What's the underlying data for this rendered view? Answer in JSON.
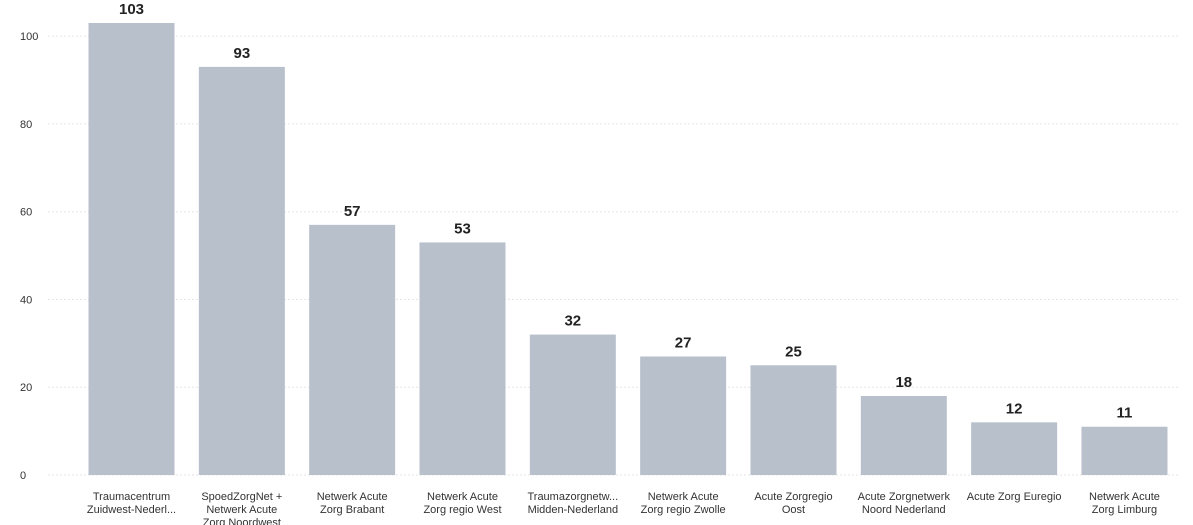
{
  "chart_data": {
    "type": "bar",
    "categories": [
      [
        "Traumacentrum",
        "Zuidwest-Nederl..."
      ],
      [
        "SpoedZorgNet +",
        "Netwerk Acute",
        "Zorg Noordwest"
      ],
      [
        "Netwerk Acute",
        "Zorg Brabant"
      ],
      [
        "Netwerk Acute",
        "Zorg regio West"
      ],
      [
        "Traumazorgnetw...",
        "Midden-Nederland"
      ],
      [
        "Netwerk Acute",
        "Zorg regio Zwolle"
      ],
      [
        "Acute Zorgregio",
        "Oost"
      ],
      [
        "Acute Zorgnetwerk",
        "Noord Nederland"
      ],
      [
        "Acute Zorg Euregio"
      ],
      [
        "Netwerk Acute",
        "Zorg Limburg"
      ]
    ],
    "values": [
      103,
      93,
      57,
      53,
      32,
      27,
      25,
      18,
      12,
      11
    ],
    "yticks": [
      0,
      20,
      40,
      60,
      80,
      100
    ],
    "ylim": [
      0,
      103
    ],
    "grid": true,
    "colors": {
      "bar": "#b8c0cc",
      "grid": "#e6e6e6",
      "label": "#222222"
    }
  }
}
